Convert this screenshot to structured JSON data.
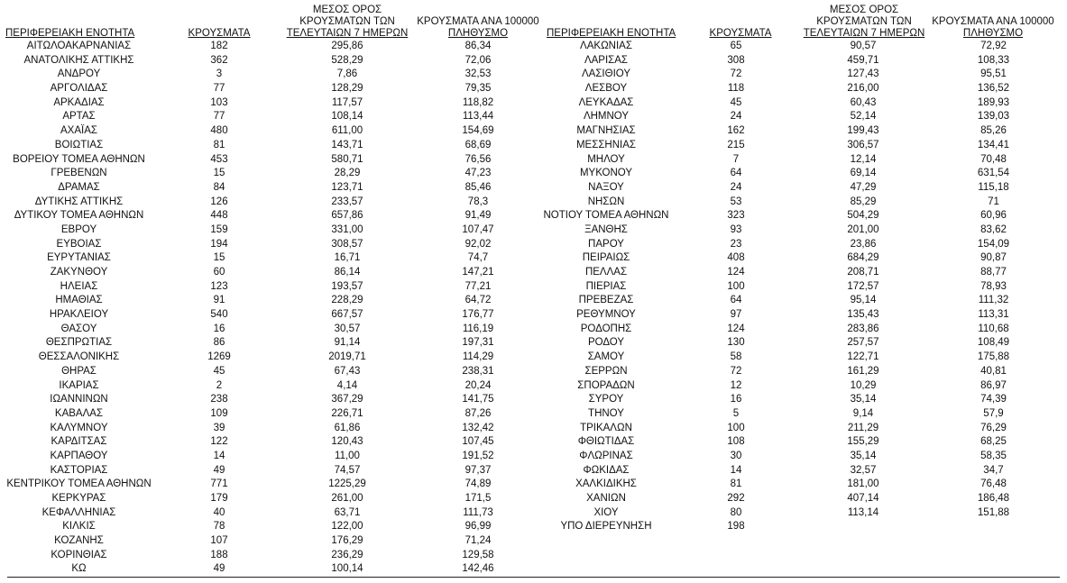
{
  "headers": {
    "region": "ΠΕΡΙΦΕΡΕΙΑΚΗ ΕΝΟΤΗΤΑ",
    "cases": "ΚΡΟΥΣΜΑΤΑ",
    "avg_line1": "ΜΕΣΟΣ ΟΡΟΣ",
    "avg_line2": "ΚΡΟΥΣΜΑΤΩΝ ΤΩΝ",
    "avg_line3": "ΤΕΛΕΥΤΑΙΩΝ 7 ΗΜΕΡΩΝ",
    "per100k_line1": "ΚΡΟΥΣΜΑΤΑ ΑΝΑ 100000",
    "per100k_line2": "ΠΛΗΘΥΣΜΟ"
  },
  "left_rows": [
    [
      "ΑΙΤΩΛΟΑΚΑΡΝΑΝΙΑΣ",
      "182",
      "295,86",
      "86,34"
    ],
    [
      "ΑΝΑΤΟΛΙΚΗΣ ΑΤΤΙΚΗΣ",
      "362",
      "528,29",
      "72,06"
    ],
    [
      "ΑΝΔΡΟΥ",
      "3",
      "7,86",
      "32,53"
    ],
    [
      "ΑΡΓΟΛΙΔΑΣ",
      "77",
      "128,29",
      "79,35"
    ],
    [
      "ΑΡΚΑΔΙΑΣ",
      "103",
      "117,57",
      "118,82"
    ],
    [
      "ΑΡΤΑΣ",
      "77",
      "108,14",
      "113,44"
    ],
    [
      "ΑΧΑΪΑΣ",
      "480",
      "611,00",
      "154,69"
    ],
    [
      "ΒΟΙΩΤΙΑΣ",
      "81",
      "143,71",
      "68,69"
    ],
    [
      "ΒΟΡΕΙΟΥ ΤΟΜΕΑ ΑΘΗΝΩΝ",
      "453",
      "580,71",
      "76,56"
    ],
    [
      "ΓΡΕΒΕΝΩΝ",
      "15",
      "28,29",
      "47,23"
    ],
    [
      "ΔΡΑΜΑΣ",
      "84",
      "123,71",
      "85,46"
    ],
    [
      "ΔΥΤΙΚΗΣ ΑΤΤΙΚΗΣ",
      "126",
      "233,57",
      "78,3"
    ],
    [
      "ΔΥΤΙΚΟΥ ΤΟΜΕΑ ΑΘΗΝΩΝ",
      "448",
      "657,86",
      "91,49"
    ],
    [
      "ΕΒΡΟΥ",
      "159",
      "331,00",
      "107,47"
    ],
    [
      "ΕΥΒΟΙΑΣ",
      "194",
      "308,57",
      "92,02"
    ],
    [
      "ΕΥΡΥΤΑΝΙΑΣ",
      "15",
      "16,71",
      "74,7"
    ],
    [
      "ΖΑΚΥΝΘΟΥ",
      "60",
      "86,14",
      "147,21"
    ],
    [
      "ΗΛΕΙΑΣ",
      "123",
      "193,57",
      "77,21"
    ],
    [
      "ΗΜΑΘΙΑΣ",
      "91",
      "228,29",
      "64,72"
    ],
    [
      "ΗΡΑΚΛΕΙΟΥ",
      "540",
      "667,57",
      "176,77"
    ],
    [
      "ΘΑΣΟΥ",
      "16",
      "30,57",
      "116,19"
    ],
    [
      "ΘΕΣΠΡΩΤΙΑΣ",
      "86",
      "91,14",
      "197,31"
    ],
    [
      "ΘΕΣΣΑΛΟΝΙΚΗΣ",
      "1269",
      "2019,71",
      "114,29"
    ],
    [
      "ΘΗΡΑΣ",
      "45",
      "67,43",
      "238,31"
    ],
    [
      "ΙΚΑΡΙΑΣ",
      "2",
      "4,14",
      "20,24"
    ],
    [
      "ΙΩΑΝΝΙΝΩΝ",
      "238",
      "367,29",
      "141,75"
    ],
    [
      "ΚΑΒΑΛΑΣ",
      "109",
      "226,71",
      "87,26"
    ],
    [
      "ΚΑΛΥΜΝΟΥ",
      "39",
      "61,86",
      "132,42"
    ],
    [
      "ΚΑΡΔΙΤΣΑΣ",
      "122",
      "120,43",
      "107,45"
    ],
    [
      "ΚΑΡΠΑΘΟΥ",
      "14",
      "11,00",
      "191,52"
    ],
    [
      "ΚΑΣΤΟΡΙΑΣ",
      "49",
      "74,57",
      "97,37"
    ],
    [
      "ΚΕΝΤΡΙΚΟΥ ΤΟΜΕΑ ΑΘΗΝΩΝ",
      "771",
      "1225,29",
      "74,89"
    ],
    [
      "ΚΕΡΚΥΡΑΣ",
      "179",
      "261,00",
      "171,5"
    ],
    [
      "ΚΕΦΑΛΛΗΝΙΑΣ",
      "40",
      "63,71",
      "111,73"
    ],
    [
      "ΚΙΛΚΙΣ",
      "78",
      "122,00",
      "96,99"
    ],
    [
      "ΚΟΖΑΝΗΣ",
      "107",
      "176,29",
      "71,24"
    ],
    [
      "ΚΟΡΙΝΘΙΑΣ",
      "188",
      "236,29",
      "129,58"
    ],
    [
      "ΚΩ",
      "49",
      "100,14",
      "142,46"
    ]
  ],
  "right_rows": [
    [
      "ΛΑΚΩΝΙΑΣ",
      "65",
      "90,57",
      "72,92"
    ],
    [
      "ΛΑΡΙΣΑΣ",
      "308",
      "459,71",
      "108,33"
    ],
    [
      "ΛΑΣΙΘΙΟΥ",
      "72",
      "127,43",
      "95,51"
    ],
    [
      "ΛΕΣΒΟΥ",
      "118",
      "216,00",
      "136,52"
    ],
    [
      "ΛΕΥΚΑΔΑΣ",
      "45",
      "60,43",
      "189,93"
    ],
    [
      "ΛΗΜΝΟΥ",
      "24",
      "52,14",
      "139,03"
    ],
    [
      "ΜΑΓΝΗΣΙΑΣ",
      "162",
      "199,43",
      "85,26"
    ],
    [
      "ΜΕΣΣΗΝΙΑΣ",
      "215",
      "306,57",
      "134,41"
    ],
    [
      "ΜΗΛΟΥ",
      "7",
      "12,14",
      "70,48"
    ],
    [
      "ΜΥΚΟΝΟΥ",
      "64",
      "69,14",
      "631,54"
    ],
    [
      "ΝΑΞΟΥ",
      "24",
      "47,29",
      "115,18"
    ],
    [
      "ΝΗΣΩΝ",
      "53",
      "85,29",
      "71"
    ],
    [
      "ΝΟΤΙΟΥ ΤΟΜΕΑ ΑΘΗΝΩΝ",
      "323",
      "504,29",
      "60,96"
    ],
    [
      "ΞΑΝΘΗΣ",
      "93",
      "201,00",
      "83,62"
    ],
    [
      "ΠΑΡΟΥ",
      "23",
      "23,86",
      "154,09"
    ],
    [
      "ΠΕΙΡΑΙΩΣ",
      "408",
      "684,29",
      "90,87"
    ],
    [
      "ΠΕΛΛΑΣ",
      "124",
      "208,71",
      "88,77"
    ],
    [
      "ΠΙΕΡΙΑΣ",
      "100",
      "172,57",
      "78,93"
    ],
    [
      "ΠΡΕΒΕΖΑΣ",
      "64",
      "95,14",
      "111,32"
    ],
    [
      "ΡΕΘΥΜΝΟΥ",
      "97",
      "135,43",
      "113,31"
    ],
    [
      "ΡΟΔΟΠΗΣ",
      "124",
      "283,86",
      "110,68"
    ],
    [
      "ΡΟΔΟΥ",
      "130",
      "257,57",
      "108,49"
    ],
    [
      "ΣΑΜΟΥ",
      "58",
      "122,71",
      "175,88"
    ],
    [
      "ΣΕΡΡΩΝ",
      "72",
      "161,29",
      "40,81"
    ],
    [
      "ΣΠΟΡΑΔΩΝ",
      "12",
      "10,29",
      "86,97"
    ],
    [
      "ΣΥΡΟΥ",
      "16",
      "35,14",
      "74,39"
    ],
    [
      "ΤΗΝΟΥ",
      "5",
      "9,14",
      "57,9"
    ],
    [
      "ΤΡΙΚΑΛΩΝ",
      "100",
      "211,29",
      "76,29"
    ],
    [
      "ΦΘΙΩΤΙΔΑΣ",
      "108",
      "155,29",
      "68,25"
    ],
    [
      "ΦΛΩΡΙΝΑΣ",
      "30",
      "35,14",
      "58,35"
    ],
    [
      "ΦΩΚΙΔΑΣ",
      "14",
      "32,57",
      "34,7"
    ],
    [
      "ΧΑΛΚΙΔΙΚΗΣ",
      "81",
      "181,00",
      "76,48"
    ],
    [
      "ΧΑΝΙΩΝ",
      "292",
      "407,14",
      "186,48"
    ],
    [
      "ΧΙΟΥ",
      "80",
      "113,14",
      "151,88"
    ],
    [
      "ΥΠΟ ΔΙΕΡΕΥΝΗΣΗ",
      "198",
      "",
      ""
    ]
  ]
}
